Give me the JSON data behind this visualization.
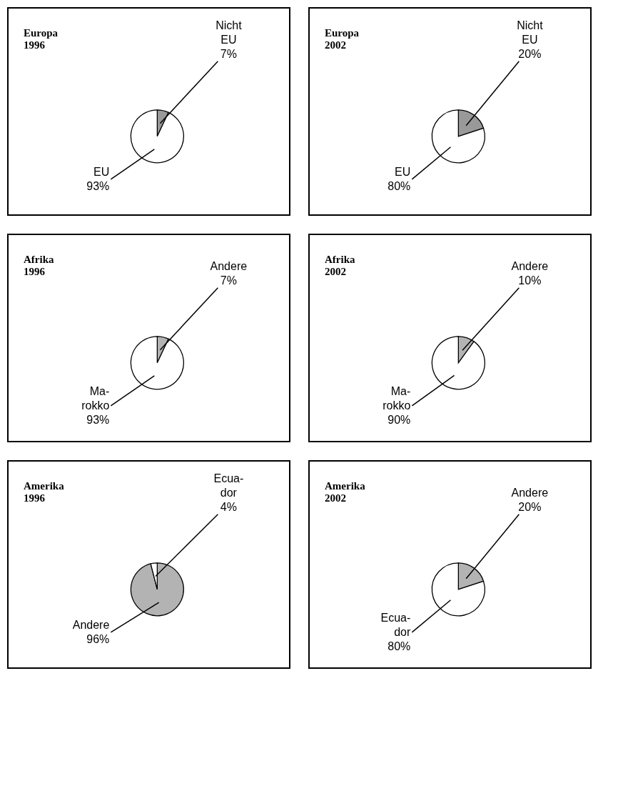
{
  "chart_data": [
    {
      "type": "pie",
      "title": "Europa",
      "subtitle": "1996",
      "categories": [
        "Nicht EU",
        "EU"
      ],
      "values": [
        7,
        93
      ],
      "colors": [
        "#999999",
        "#ffffff"
      ],
      "value_labels": [
        "7%",
        "93%"
      ]
    },
    {
      "type": "pie",
      "title": "Europa",
      "subtitle": "2002",
      "categories": [
        "Nicht EU",
        "EU"
      ],
      "values": [
        20,
        80
      ],
      "colors": [
        "#999999",
        "#ffffff"
      ],
      "value_labels": [
        "20%",
        "80%"
      ]
    },
    {
      "type": "pie",
      "title": "Afrika",
      "subtitle": "1996",
      "categories": [
        "Andere",
        "Ma-rokko"
      ],
      "values": [
        7,
        93
      ],
      "colors": [
        "#b3b3b3",
        "#ffffff"
      ],
      "value_labels": [
        "7%",
        "93%"
      ]
    },
    {
      "type": "pie",
      "title": "Afrika",
      "subtitle": "2002",
      "categories": [
        "Andere",
        "Ma-rokko"
      ],
      "values": [
        10,
        90
      ],
      "colors": [
        "#b3b3b3",
        "#ffffff"
      ],
      "value_labels": [
        "10%",
        "90%"
      ]
    },
    {
      "type": "pie",
      "title": "Amerika",
      "subtitle": "1996",
      "categories": [
        "Andere",
        "Ecua-dor"
      ],
      "values": [
        96,
        4
      ],
      "colors": [
        "#b3b3b3",
        "#ffffff"
      ],
      "value_labels": [
        "96%",
        "4%"
      ]
    },
    {
      "type": "pie",
      "title": "Amerika",
      "subtitle": "2002",
      "categories": [
        "Andere",
        "Ecua-dor"
      ],
      "values": [
        20,
        80
      ],
      "colors": [
        "#b3b3b3",
        "#ffffff"
      ],
      "value_labels": [
        "20%",
        "80%"
      ]
    }
  ]
}
